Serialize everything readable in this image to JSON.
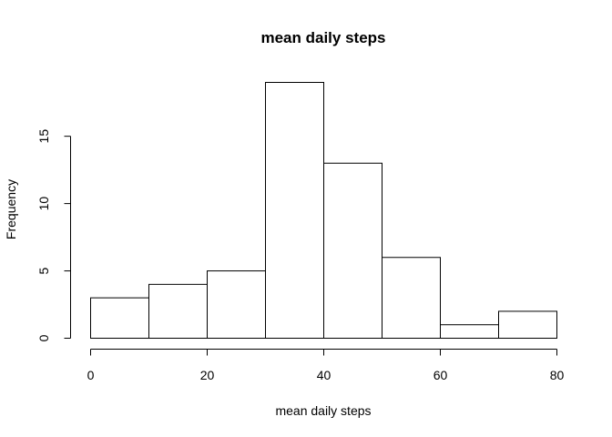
{
  "chart_data": {
    "type": "bar",
    "title": "mean daily steps",
    "xlabel": "mean daily steps",
    "ylabel": "Frequency",
    "bins": [
      {
        "from": 0,
        "to": 10,
        "count": 3
      },
      {
        "from": 10,
        "to": 20,
        "count": 4
      },
      {
        "from": 20,
        "to": 30,
        "count": 5
      },
      {
        "from": 30,
        "to": 40,
        "count": 19
      },
      {
        "from": 40,
        "to": 50,
        "count": 13
      },
      {
        "from": 50,
        "to": 60,
        "count": 6
      },
      {
        "from": 60,
        "to": 70,
        "count": 1
      },
      {
        "from": 70,
        "to": 80,
        "count": 2
      }
    ],
    "xlim": [
      0,
      80
    ],
    "ylim": [
      0,
      19
    ],
    "x_ticks": [
      0,
      20,
      40,
      60,
      80
    ],
    "y_ticks": [
      0,
      5,
      10,
      15
    ],
    "grid": false,
    "legend": "none"
  }
}
